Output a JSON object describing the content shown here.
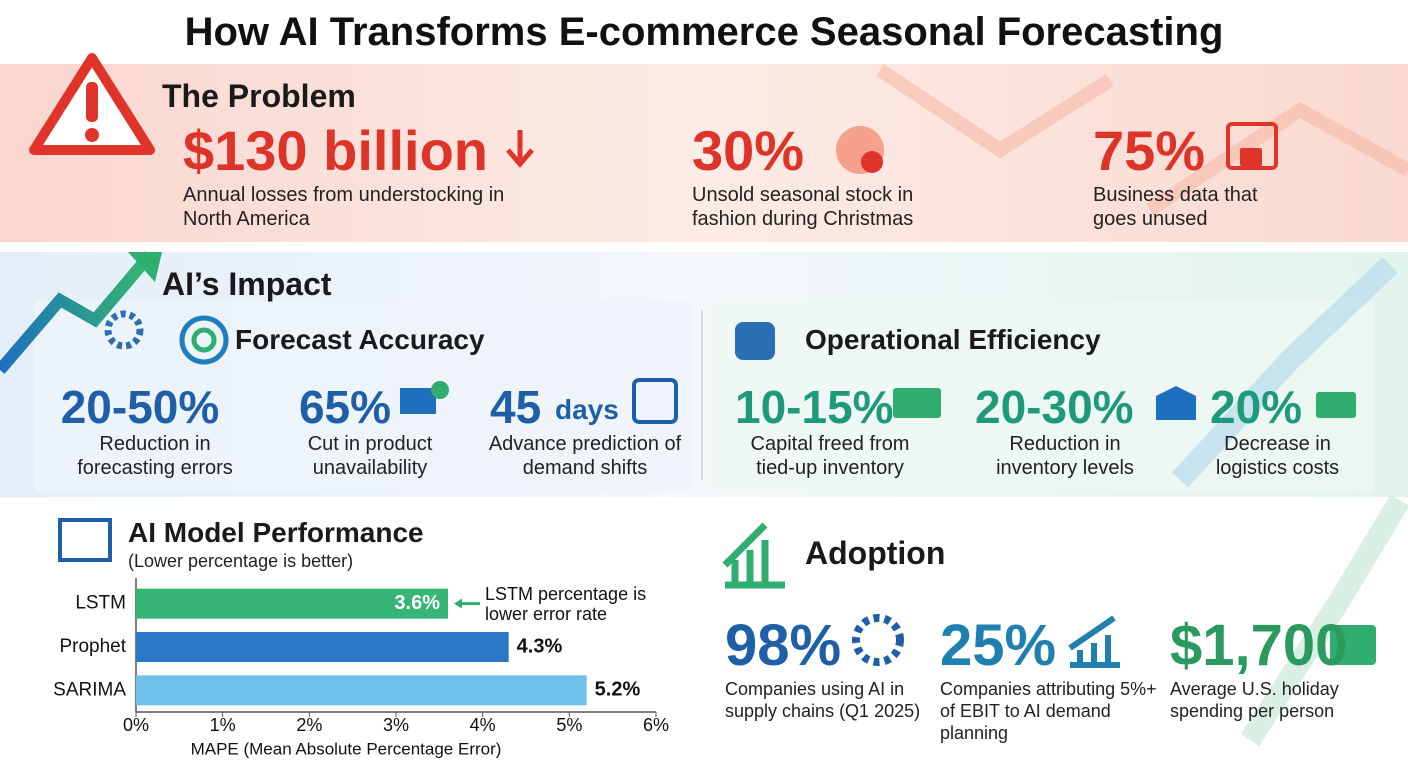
{
  "title": "How AI Transforms E-commerce Seasonal Forecasting",
  "problem": {
    "heading": "The Problem",
    "stats": [
      {
        "value": "$130 billion",
        "text": "Annual losses from understocking in North America"
      },
      {
        "value": "30%",
        "text": "Unsold seasonal stock in fashion during Christmas"
      },
      {
        "value": "75%",
        "text": "Business data that goes unused"
      }
    ]
  },
  "impact": {
    "heading": "AI’s Impact",
    "accuracy": {
      "heading": "Forecast Accuracy",
      "stats": [
        {
          "value": "20-50%",
          "text": "Reduction in forecasting errors"
        },
        {
          "value": "65%",
          "text": "Cut in product unavailability"
        },
        {
          "value": "45",
          "unit": "days",
          "text": "Advance prediction of demand shifts"
        }
      ]
    },
    "efficiency": {
      "heading": "Operational Efficiency",
      "stats": [
        {
          "value": "10-15%",
          "text": "Capital freed from tied-up inventory"
        },
        {
          "value": "20-30%",
          "text": "Reduction in inventory levels"
        },
        {
          "value": "20%",
          "text": "Decrease in logistics costs"
        }
      ]
    }
  },
  "chart_data": {
    "type": "bar",
    "orientation": "horizontal",
    "title": "AI Model Performance",
    "subtitle": "(Lower percentage is better)",
    "categories": [
      "LSTM",
      "Prophet",
      "SARIMA"
    ],
    "values": [
      3.6,
      4.3,
      5.2
    ],
    "value_labels": [
      "3.6%",
      "4.3%",
      "5.2%"
    ],
    "colors": [
      "#36b577",
      "#2a78c6",
      "#6fc0ea"
    ],
    "xlim": [
      0,
      6
    ],
    "xticks": [
      {
        "value": 0,
        "label": "0%"
      },
      {
        "value": 1,
        "label": "1%"
      },
      {
        "value": 2,
        "label": "2%"
      },
      {
        "value": 3,
        "label": "3%"
      },
      {
        "value": 4,
        "label": "4%"
      },
      {
        "value": 5,
        "label": "5%"
      },
      {
        "value": 6,
        "label": "6%"
      }
    ],
    "xlabel": "MAPE (Mean Absolute Percentage Error)",
    "annotation": "LSTM percentage is lower error rate"
  },
  "adoption": {
    "heading": "Adoption",
    "stats": [
      {
        "value": "98%",
        "text": "Companies using AI in supply chains (Q1 2025)"
      },
      {
        "value": "25%",
        "text": "Companies attributing 5%+ of EBIT to AI demand planning"
      },
      {
        "value": "$1,700",
        "text": "Average U.S. holiday spending per person"
      }
    ]
  }
}
